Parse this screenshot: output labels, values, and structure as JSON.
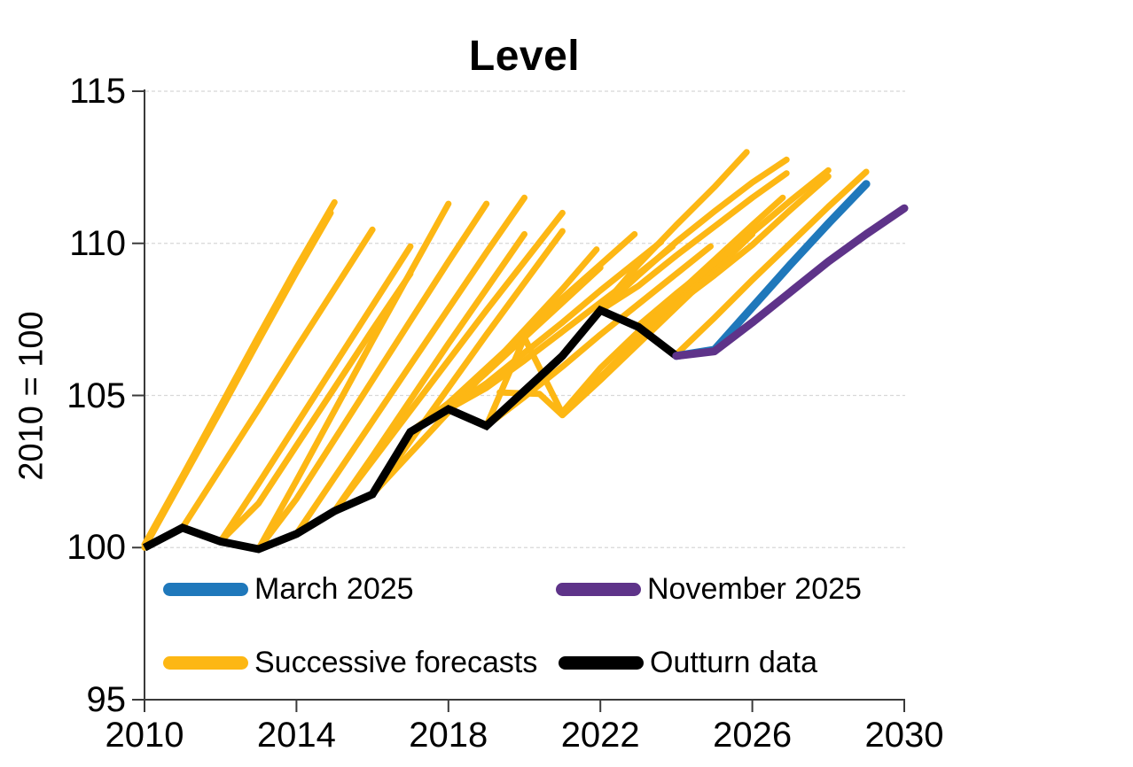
{
  "chart_data": {
    "type": "line",
    "title": "Level",
    "ylabel": "2010 = 100",
    "xlim": [
      2010,
      2030
    ],
    "ylim": [
      95,
      115
    ],
    "xticks": [
      "2010",
      "2014",
      "2018",
      "2022",
      "2026",
      "2030"
    ],
    "yticks": [
      "115",
      "110",
      "105",
      "100",
      "95"
    ],
    "gridline_values": [
      115,
      110,
      105,
      100
    ],
    "grid": "dashed-horizontal",
    "legend_position": "bottom-inside",
    "colors": {
      "forecast_yellow": "#FDB714",
      "march_blue": "#1F78BB",
      "november_purple": "#5E3389",
      "outturn_black": "#000000",
      "gridline": "#D8D8D8",
      "axis": "#3A3A3A"
    },
    "legend": [
      {
        "label": "March 2025",
        "color": "#1F78BB"
      },
      {
        "label": "November 2025",
        "color": "#5E3389"
      },
      {
        "label": "Successive forecasts",
        "color": "#FDB714"
      },
      {
        "label": "Outturn data",
        "color": "#000000"
      }
    ],
    "series": [
      {
        "name": "Outturn data",
        "color": "#000000",
        "width": 9,
        "cap": "butt",
        "join": "miter",
        "points": [
          [
            2010,
            100
          ],
          [
            2011,
            100.65
          ],
          [
            2012,
            100.2
          ],
          [
            2013,
            99.95
          ],
          [
            2014,
            100.45
          ],
          [
            2015,
            101.2
          ],
          [
            2016,
            101.75
          ],
          [
            2017,
            103.8
          ],
          [
            2018,
            104.55
          ],
          [
            2019,
            104.0
          ],
          [
            2020,
            105.15
          ],
          [
            2021,
            106.3
          ],
          [
            2022,
            107.8
          ],
          [
            2023,
            107.25
          ],
          [
            2024,
            106.3
          ]
        ]
      },
      {
        "name": "March 2025",
        "color": "#1F78BB",
        "width": 9,
        "cap": "round",
        "join": "round",
        "points": [
          [
            2024,
            106.3
          ],
          [
            2025,
            106.5
          ],
          [
            2026,
            107.9
          ],
          [
            2027,
            109.3
          ],
          [
            2028,
            110.65
          ],
          [
            2029,
            111.95
          ]
        ]
      },
      {
        "name": "November 2025",
        "color": "#5E3389",
        "width": 9,
        "cap": "round",
        "join": "round",
        "points": [
          [
            2024,
            106.3
          ],
          [
            2025,
            106.45
          ],
          [
            2026,
            107.4
          ],
          [
            2027,
            108.4
          ],
          [
            2028,
            109.4
          ],
          [
            2029,
            110.3
          ],
          [
            2030,
            111.15
          ]
        ]
      }
    ],
    "forecast_series": {
      "name": "Successive forecasts",
      "color": "#FDB714",
      "width": 7,
      "lines": [
        [
          [
            2010,
            100.0
          ],
          [
            2011,
            102.25
          ],
          [
            2012,
            104.5
          ],
          [
            2013,
            106.8
          ],
          [
            2014,
            109.05
          ],
          [
            2014.9,
            111.0
          ]
        ],
        [
          [
            2010,
            100.1
          ],
          [
            2011,
            102.35
          ],
          [
            2012,
            104.65
          ],
          [
            2013,
            106.95
          ],
          [
            2014,
            109.2
          ],
          [
            2015,
            111.35
          ]
        ],
        [
          [
            2011,
            100.65
          ],
          [
            2012,
            102.6
          ],
          [
            2013,
            104.55
          ],
          [
            2014,
            106.55
          ],
          [
            2015,
            108.5
          ],
          [
            2016,
            110.45
          ]
        ],
        [
          [
            2012,
            100.2
          ],
          [
            2013,
            102.1
          ],
          [
            2014,
            104.05
          ],
          [
            2015,
            106.0
          ],
          [
            2016,
            107.95
          ],
          [
            2017,
            109.9
          ]
        ],
        [
          [
            2012,
            100.2
          ],
          [
            2013,
            101.45
          ],
          [
            2014,
            103.35
          ],
          [
            2015,
            105.25
          ],
          [
            2016,
            107.15
          ],
          [
            2017,
            109.0
          ]
        ],
        [
          [
            2013,
            99.95
          ],
          [
            2014,
            102.2
          ],
          [
            2015,
            104.5
          ],
          [
            2016,
            106.8
          ],
          [
            2017,
            109.05
          ],
          [
            2018,
            111.3
          ]
        ],
        [
          [
            2013,
            99.95
          ],
          [
            2014,
            101.6
          ],
          [
            2015,
            103.55
          ],
          [
            2016,
            105.5
          ],
          [
            2017,
            107.45
          ],
          [
            2018,
            109.4
          ],
          [
            2019,
            111.3
          ]
        ],
        [
          [
            2014,
            100.45
          ],
          [
            2015,
            102.3
          ],
          [
            2016,
            104.15
          ],
          [
            2017,
            106.0
          ],
          [
            2018,
            107.85
          ],
          [
            2019,
            109.7
          ],
          [
            2020,
            111.5
          ]
        ],
        [
          [
            2015,
            101.2
          ],
          [
            2016,
            103.0
          ],
          [
            2017,
            104.85
          ],
          [
            2018,
            106.7
          ],
          [
            2019,
            108.5
          ],
          [
            2020,
            110.3
          ]
        ],
        [
          [
            2015,
            101.2
          ],
          [
            2016,
            102.85
          ],
          [
            2017,
            104.5
          ],
          [
            2018,
            106.15
          ],
          [
            2019,
            107.8
          ],
          [
            2020,
            109.4
          ],
          [
            2021,
            111.0
          ]
        ],
        [
          [
            2016,
            101.75
          ],
          [
            2017,
            103.5
          ],
          [
            2018,
            105.25
          ],
          [
            2019,
            107.0
          ],
          [
            2020,
            108.7
          ],
          [
            2021,
            110.4
          ]
        ],
        [
          [
            2016,
            101.75
          ],
          [
            2017,
            103.1
          ],
          [
            2018,
            104.45
          ],
          [
            2019,
            105.8
          ],
          [
            2020,
            107.15
          ],
          [
            2021,
            108.5
          ],
          [
            2021.9,
            109.8
          ]
        ],
        [
          [
            2017,
            103.8
          ],
          [
            2018,
            104.65
          ],
          [
            2019,
            105.75
          ],
          [
            2020,
            106.9
          ],
          [
            2021,
            108.05
          ],
          [
            2022,
            109.2
          ]
        ],
        [
          [
            2017,
            103.8
          ],
          [
            2018,
            104.75
          ],
          [
            2019,
            105.9
          ],
          [
            2020,
            107.05
          ],
          [
            2021,
            108.2
          ],
          [
            2022,
            109.3
          ],
          [
            2022.9,
            110.3
          ]
        ],
        [
          [
            2018,
            104.55
          ],
          [
            2019,
            105.4
          ],
          [
            2020,
            106.4
          ],
          [
            2021,
            107.4
          ],
          [
            2022,
            108.45
          ],
          [
            2023,
            109.45
          ],
          [
            2023.6,
            110.05
          ]
        ],
        [
          [
            2018,
            104.55
          ],
          [
            2019,
            105.25
          ],
          [
            2020,
            106.15
          ],
          [
            2021,
            107.1
          ],
          [
            2022,
            108.05
          ],
          [
            2023,
            109.0
          ],
          [
            2023.9,
            109.9
          ]
        ],
        [
          [
            2019,
            104.0
          ],
          [
            2020,
            104.95
          ],
          [
            2021,
            105.95
          ],
          [
            2022,
            107.0
          ],
          [
            2023,
            108.0
          ],
          [
            2024,
            109.0
          ],
          [
            2024.9,
            109.9
          ]
        ],
        [
          [
            2019,
            104.0
          ],
          [
            2020,
            106.9
          ],
          [
            2021,
            104.4
          ],
          [
            2022,
            105.6
          ],
          [
            2023,
            106.85
          ],
          [
            2024,
            108.1
          ],
          [
            2025,
            109.35
          ],
          [
            2025.5,
            109.95
          ]
        ],
        [
          [
            2019.35,
            105.1
          ],
          [
            2020.4,
            105.05
          ],
          [
            2021,
            104.35
          ],
          [
            2022,
            105.5
          ],
          [
            2023,
            106.7
          ],
          [
            2024,
            107.9
          ],
          [
            2025,
            109.1
          ],
          [
            2026,
            110.3
          ]
        ],
        [
          [
            2021,
            104.45
          ],
          [
            2022,
            105.9
          ],
          [
            2023,
            107.1
          ],
          [
            2024,
            108.3
          ],
          [
            2025,
            109.45
          ],
          [
            2026,
            110.6
          ],
          [
            2026.8,
            111.5
          ]
        ],
        [
          [
            2021,
            106.3
          ],
          [
            2022,
            107.85
          ],
          [
            2023,
            109.3
          ],
          [
            2024,
            110.6
          ],
          [
            2025,
            111.85
          ],
          [
            2025.85,
            113.0
          ]
        ],
        [
          [
            2022,
            107.8
          ],
          [
            2023,
            108.95
          ],
          [
            2024,
            110.05
          ],
          [
            2025,
            111.05
          ],
          [
            2026,
            112.0
          ],
          [
            2026.9,
            112.75
          ]
        ],
        [
          [
            2022,
            107.8
          ],
          [
            2023,
            108.6
          ],
          [
            2024,
            109.6
          ],
          [
            2025,
            110.55
          ],
          [
            2026,
            111.5
          ],
          [
            2026.9,
            112.3
          ]
        ],
        [
          [
            2023,
            107.3
          ],
          [
            2024,
            108.35
          ],
          [
            2025,
            109.35
          ],
          [
            2026,
            110.35
          ],
          [
            2027,
            111.4
          ],
          [
            2028,
            112.4
          ]
        ],
        [
          [
            2023,
            107.25
          ],
          [
            2024,
            108.0
          ],
          [
            2025,
            108.95
          ],
          [
            2026,
            109.95
          ],
          [
            2027,
            111.1
          ],
          [
            2028,
            112.2
          ]
        ],
        [
          [
            2024,
            106.35
          ],
          [
            2025,
            107.55
          ],
          [
            2026,
            108.8
          ],
          [
            2027,
            110.0
          ],
          [
            2028,
            111.2
          ],
          [
            2029,
            112.35
          ]
        ]
      ]
    }
  }
}
